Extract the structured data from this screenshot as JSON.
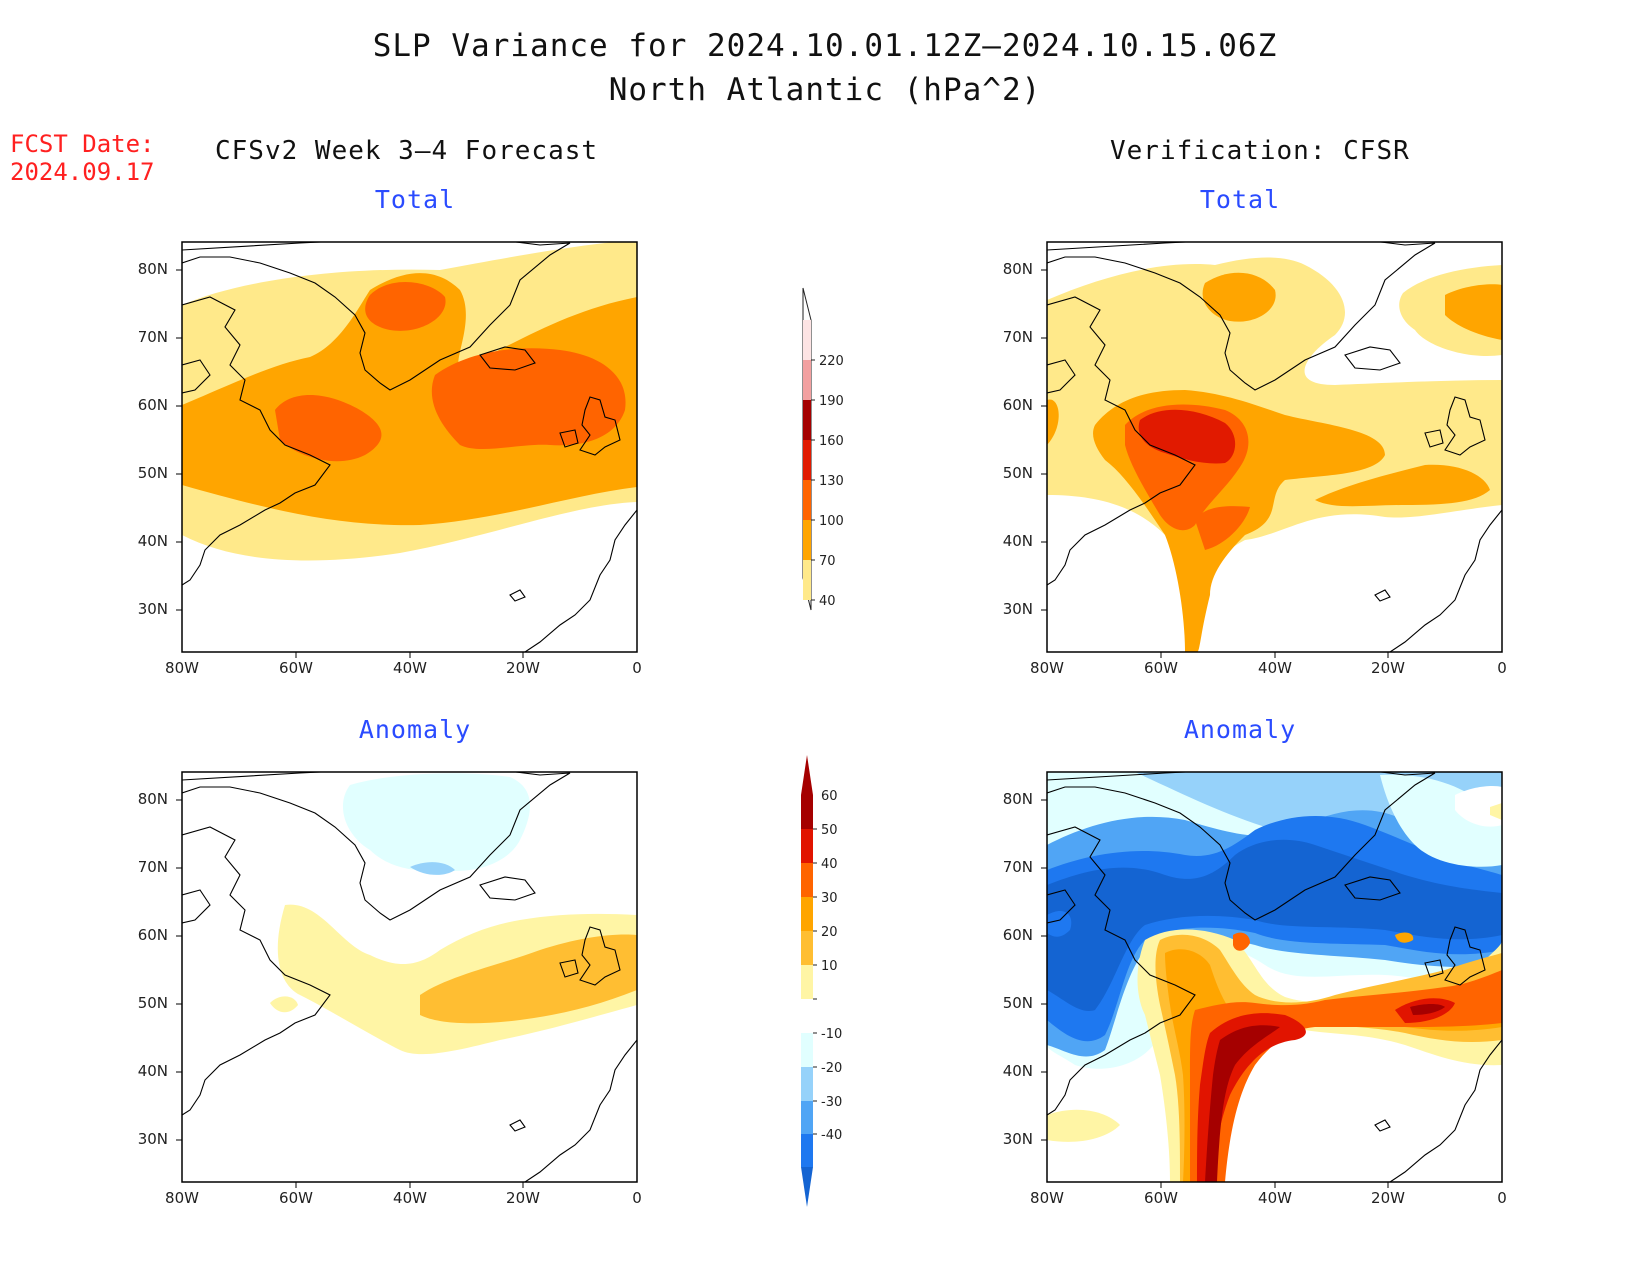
{
  "title_line1": "SLP Variance for 2024.10.01.12Z–2024.10.15.06Z",
  "title_line2": "North Atlantic (hPa^2)",
  "fcst_label": "FCST Date:",
  "fcst_date": "2024.09.17",
  "left_header": "CFSv2 Week 3–4 Forecast",
  "right_header": "Verification: CFSR",
  "panel_titles": {
    "forecast_total": "Total",
    "verification_total": "Total",
    "forecast_anomaly": "Anomaly",
    "verification_anomaly": "Anomaly"
  },
  "axes": {
    "lat_labels": [
      "80N",
      "70N",
      "60N",
      "50N",
      "40N",
      "30N"
    ],
    "lon_labels": [
      "80W",
      "60W",
      "40W",
      "20W",
      "0"
    ],
    "lat_range": [
      25,
      85
    ],
    "lon_range": [
      -80,
      0
    ]
  },
  "total_colorbar": {
    "levels": [
      "40",
      "70",
      "100",
      "130",
      "160",
      "190",
      "220"
    ],
    "colors": [
      "#ffe98a",
      "#ffa500",
      "#ff6400",
      "#e11a00",
      "#a50000",
      "#f2a0a0",
      "#fde4e4"
    ]
  },
  "anomaly_colorbar": {
    "levels": [
      "-40",
      "-30",
      "-20",
      "-10",
      "10",
      "20",
      "30",
      "40",
      "50",
      "60"
    ],
    "colors": [
      "#1464d2",
      "#1e78f0",
      "#50a5f5",
      "#96d2fa",
      "#e1ffff",
      "#ffffff",
      "#fff5a5",
      "#ffbe32",
      "#ffa500",
      "#ff6400",
      "#e11400",
      "#a50000"
    ]
  }
}
